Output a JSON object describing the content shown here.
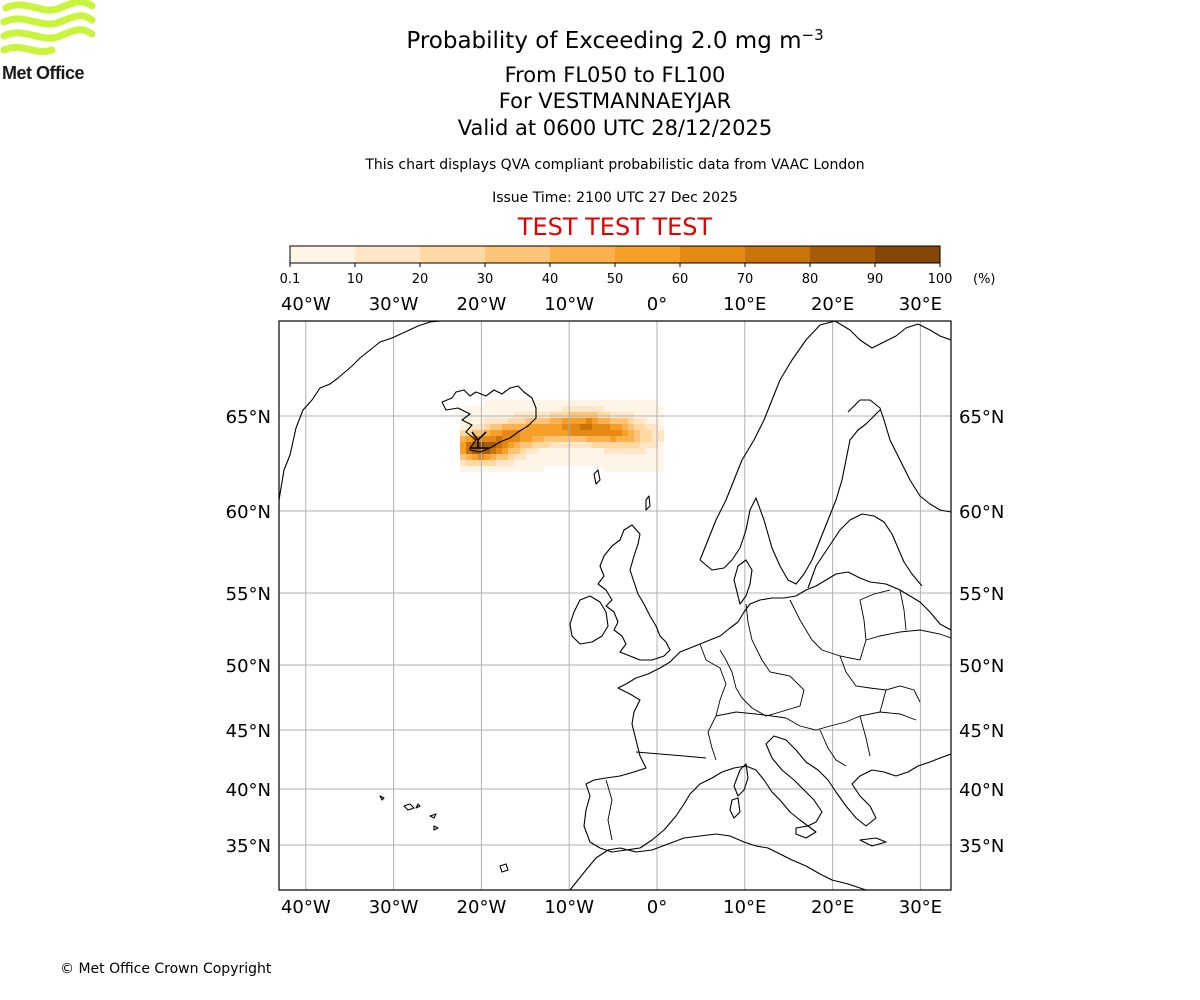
{
  "header": {
    "title_prefix": "Probability of Exceeding 2.0 mg m",
    "title_exponent": "−3",
    "levels": "From FL050 to FL100",
    "volcano": "For VESTMANNAEYJAR",
    "valid": "Valid at 0600 UTC 28/12/2025",
    "description": "This chart displays QVA compliant probabilistic data from VAAC London",
    "issue_time": "Issue Time: 2100 UTC 27 Dec 2025",
    "test_banner": "TEST TEST TEST"
  },
  "logo": {
    "text": "Met Office",
    "color": "#c8f53c"
  },
  "footer": {
    "copyright": "© Met Office Crown Copyright"
  },
  "colorbar": {
    "ticks": [
      "0.1",
      "10",
      "20",
      "30",
      "40",
      "50",
      "60",
      "70",
      "80",
      "90",
      "100"
    ],
    "unit": "(%)",
    "colors": [
      "#fff5e6",
      "#fee6c6",
      "#fed9a3",
      "#fdc47a",
      "#fbb24e",
      "#f6a02a",
      "#e48a14",
      "#c97408",
      "#a65d06",
      "#844707",
      "#5f3309"
    ]
  },
  "map": {
    "lon_labels": [
      "40°W",
      "30°W",
      "20°W",
      "10°W",
      "0°",
      "10°E",
      "20°E",
      "30°E"
    ],
    "lat_labels": [
      "65°N",
      "60°N",
      "55°N",
      "50°N",
      "45°N",
      "40°N",
      "35°N"
    ],
    "gridline_color": "#b0b0b0"
  },
  "chart_data": {
    "type": "heatmap",
    "title": "Probability of Exceeding 2.0 mg m-3, From FL050 to FL100, For VESTMANNAEYJAR",
    "units": "%",
    "lon_range": [
      -43,
      33
    ],
    "lat_range": [
      32,
      70
    ],
    "plume": [
      {
        "lon": -20.0,
        "lat": 63.4,
        "p": 95
      },
      {
        "lon": -19.0,
        "lat": 63.5,
        "p": 85
      },
      {
        "lon": -18.0,
        "lat": 63.7,
        "p": 75
      },
      {
        "lon": -17.0,
        "lat": 63.9,
        "p": 70
      },
      {
        "lon": -16.0,
        "lat": 64.0,
        "p": 65
      },
      {
        "lon": -15.0,
        "lat": 64.1,
        "p": 60
      },
      {
        "lon": -14.0,
        "lat": 64.2,
        "p": 60
      },
      {
        "lon": -12.5,
        "lat": 64.3,
        "p": 55
      },
      {
        "lon": -11.0,
        "lat": 64.35,
        "p": 60
      },
      {
        "lon": -9.5,
        "lat": 64.4,
        "p": 70
      },
      {
        "lon": -8.0,
        "lat": 64.4,
        "p": 75
      },
      {
        "lon": -6.5,
        "lat": 64.3,
        "p": 70
      },
      {
        "lon": -5.0,
        "lat": 64.2,
        "p": 65
      },
      {
        "lon": -3.5,
        "lat": 64.0,
        "p": 45
      },
      {
        "lon": -2.0,
        "lat": 63.9,
        "p": 25
      }
    ]
  }
}
